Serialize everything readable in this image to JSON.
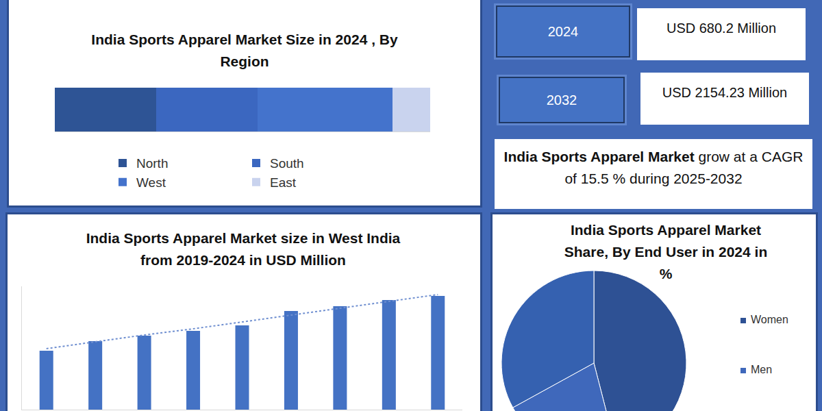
{
  "chart_data": [
    {
      "type": "bar",
      "title": "India Sports Apparel Market Size in 2024 , By Region",
      "orientation": "horizontal",
      "stacked": true,
      "categories": [
        "North",
        "South",
        "West",
        "East"
      ],
      "values": [
        27,
        27,
        36,
        10
      ],
      "colors": [
        "#2e5495",
        "#3b67c0",
        "#4473cc",
        "#c9d3ee"
      ],
      "xlim": [
        0,
        100
      ],
      "legend": "bottom",
      "tick_labels": false,
      "grid": false
    },
    {
      "type": "bar",
      "title": "India Sports Apparel Market size in West India from 2019-2024 in USD Million",
      "categories": [
        null,
        null,
        null,
        null,
        null,
        null,
        null,
        null,
        null
      ],
      "series": [
        {
          "type": "bar",
          "color": "#4472c4",
          "values": [
            86,
            100,
            108,
            115,
            123,
            144,
            151,
            160,
            166
          ]
        },
        {
          "type": "line",
          "line_style": "dot",
          "color": "#6f8fd0",
          "values": [
            89,
            99,
            109,
            118,
            128,
            138,
            148,
            158,
            168
          ]
        }
      ],
      "ylim": [
        0,
        180
      ],
      "tick_labels": false,
      "grid": false
    },
    {
      "type": "pie",
      "title": "India Sports Apparel Market Share, By End User in 2024 in %",
      "categories": [
        "Women",
        "Men",
        null
      ],
      "values": [
        46,
        21,
        33
      ],
      "colors": [
        "#2e5194",
        "#3f68bb",
        "#3561b0"
      ],
      "legend": "right"
    }
  ],
  "summary": {
    "boxes": [
      {
        "year": "2024",
        "value": "USD 680.2 Million"
      },
      {
        "year": "2032",
        "value": "USD 2154.23 Million"
      }
    ],
    "cagr": {
      "bold": "India Sports Apparel Market",
      "text": "grow at a CAGR of 15.5 % during 2025-2032"
    }
  }
}
